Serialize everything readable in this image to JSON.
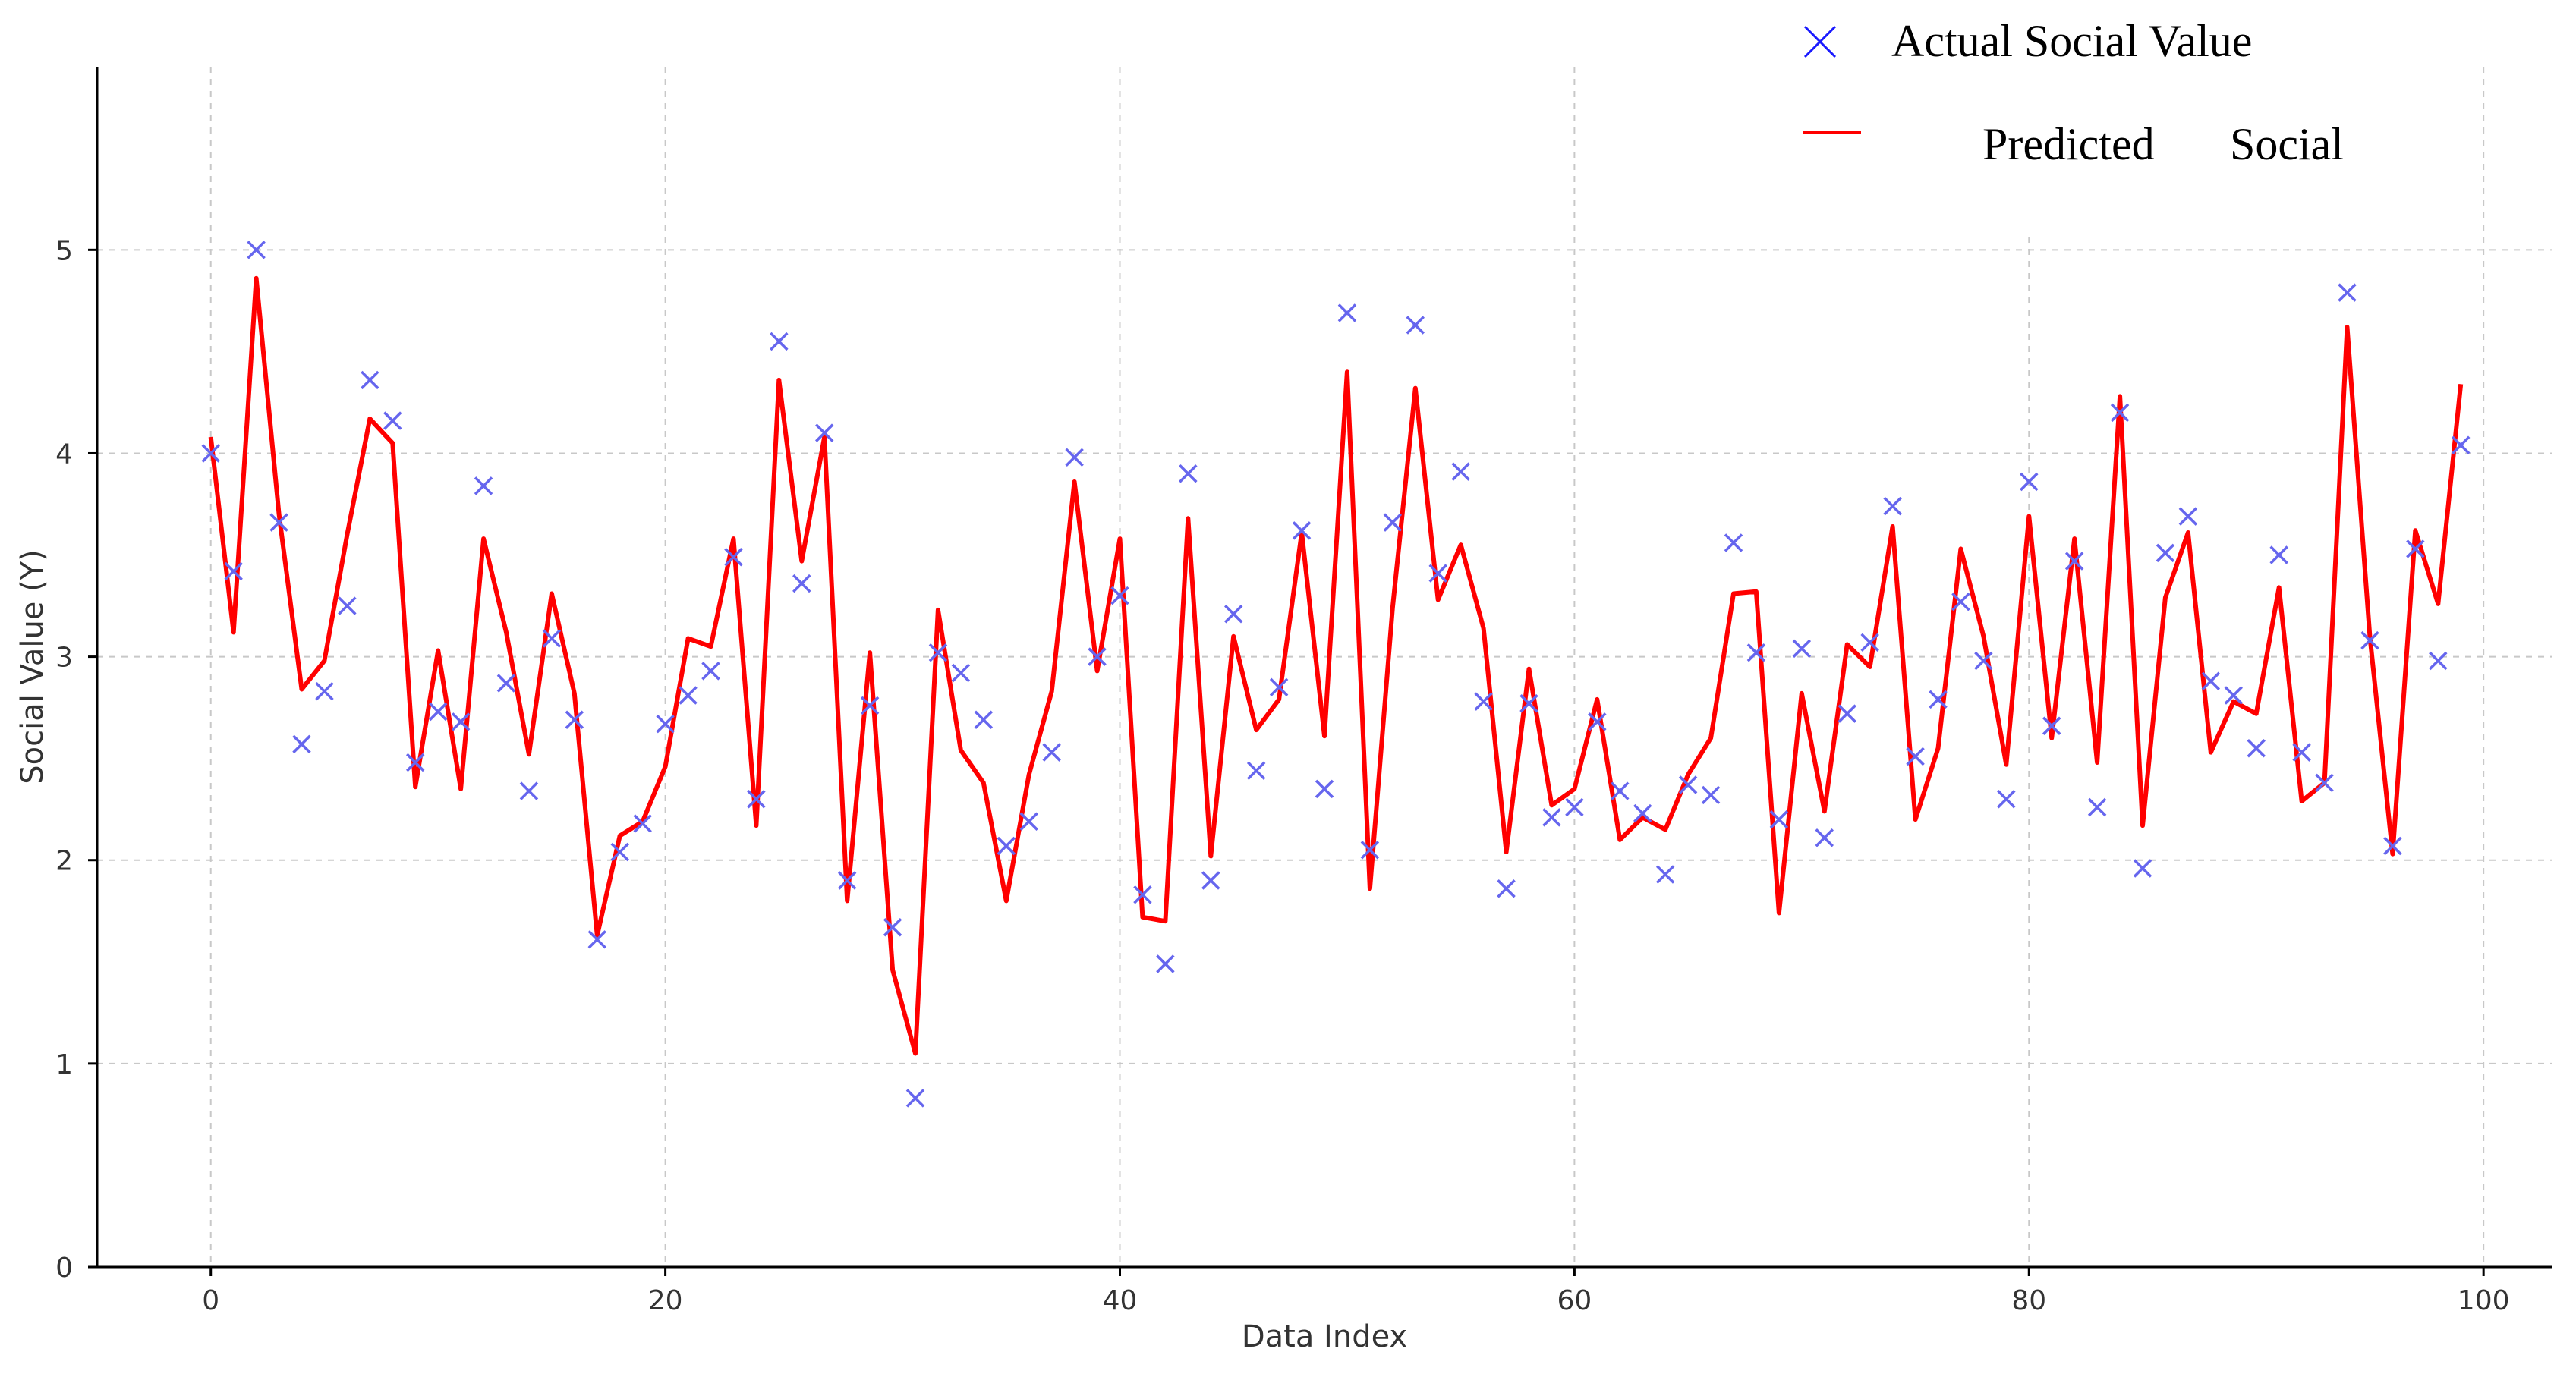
{
  "chart_data": {
    "type": "line",
    "xlabel": "Data Index",
    "ylabel": "Social Value (Y)",
    "xlim": [
      -5,
      103
    ],
    "ylim": [
      0,
      5.9
    ],
    "xticks": [
      0,
      20,
      40,
      60,
      80,
      100
    ],
    "yticks": [
      0,
      1,
      2,
      3,
      4,
      5
    ],
    "grid": true,
    "legend_position": "top-right",
    "series": [
      {
        "name": "Actual Social Value",
        "kind": "scatter",
        "marker": "x",
        "color": "#6666ee",
        "values": [
          4.0,
          3.42,
          5.0,
          3.66,
          2.57,
          2.83,
          3.25,
          4.36,
          4.16,
          2.48,
          2.73,
          2.68,
          3.84,
          2.87,
          2.34,
          3.09,
          2.69,
          1.61,
          2.04,
          2.18,
          2.67,
          2.81,
          2.93,
          3.49,
          2.3,
          4.55,
          3.36,
          4.1,
          1.9,
          2.76,
          1.67,
          0.83,
          3.02,
          2.92,
          2.69,
          2.07,
          2.19,
          2.53,
          3.98,
          3.0,
          3.3,
          1.83,
          1.49,
          3.9,
          1.9,
          3.21,
          2.44,
          2.85,
          3.62,
          2.35,
          4.69,
          2.05,
          3.66,
          4.63,
          3.41,
          3.91,
          2.78,
          1.86,
          2.77,
          2.21,
          2.26,
          2.68,
          2.34,
          2.23,
          1.93,
          2.37,
          2.32,
          3.56,
          3.02,
          2.2,
          3.04,
          2.11,
          2.72,
          3.07,
          3.74,
          2.51,
          2.79,
          3.27,
          2.98,
          2.3,
          3.86,
          2.66,
          3.47,
          2.26,
          4.2,
          1.96,
          3.51,
          3.69,
          2.88,
          2.81,
          2.55,
          3.5,
          2.53,
          2.38,
          4.79,
          3.08,
          2.07,
          3.53,
          2.98,
          4.04
        ]
      },
      {
        "name": "Predicted Social",
        "kind": "line",
        "color": "#ff0000",
        "values": [
          4.08,
          3.12,
          4.86,
          3.7,
          2.84,
          2.98,
          3.6,
          4.17,
          4.05,
          2.36,
          3.03,
          2.35,
          3.58,
          3.12,
          2.52,
          3.31,
          2.82,
          1.63,
          2.12,
          2.19,
          2.46,
          3.09,
          3.05,
          3.58,
          2.17,
          4.36,
          3.47,
          4.08,
          1.8,
          3.02,
          1.46,
          1.05,
          3.23,
          2.54,
          2.38,
          1.8,
          2.42,
          2.83,
          3.86,
          2.93,
          3.58,
          1.72,
          1.7,
          3.68,
          2.02,
          3.1,
          2.64,
          2.79,
          3.61,
          2.61,
          4.4,
          1.86,
          3.24,
          4.32,
          3.28,
          3.55,
          3.14,
          2.04,
          2.94,
          2.27,
          2.35,
          2.79,
          2.1,
          2.21,
          2.15,
          2.42,
          2.6,
          3.31,
          3.32,
          1.74,
          2.82,
          2.24,
          3.06,
          2.95,
          3.64,
          2.2,
          2.55,
          3.53,
          3.1,
          2.47,
          3.69,
          2.6,
          3.58,
          2.48,
          4.28,
          2.17,
          3.29,
          3.61,
          2.53,
          2.78,
          2.72,
          3.34,
          2.29,
          2.38,
          4.62,
          3.1,
          2.03,
          3.62,
          3.26,
          4.34
        ]
      }
    ]
  },
  "legend": {
    "actual_label": "Actual Social Value",
    "predicted_word1": "Predicted",
    "predicted_word2": "Social"
  }
}
